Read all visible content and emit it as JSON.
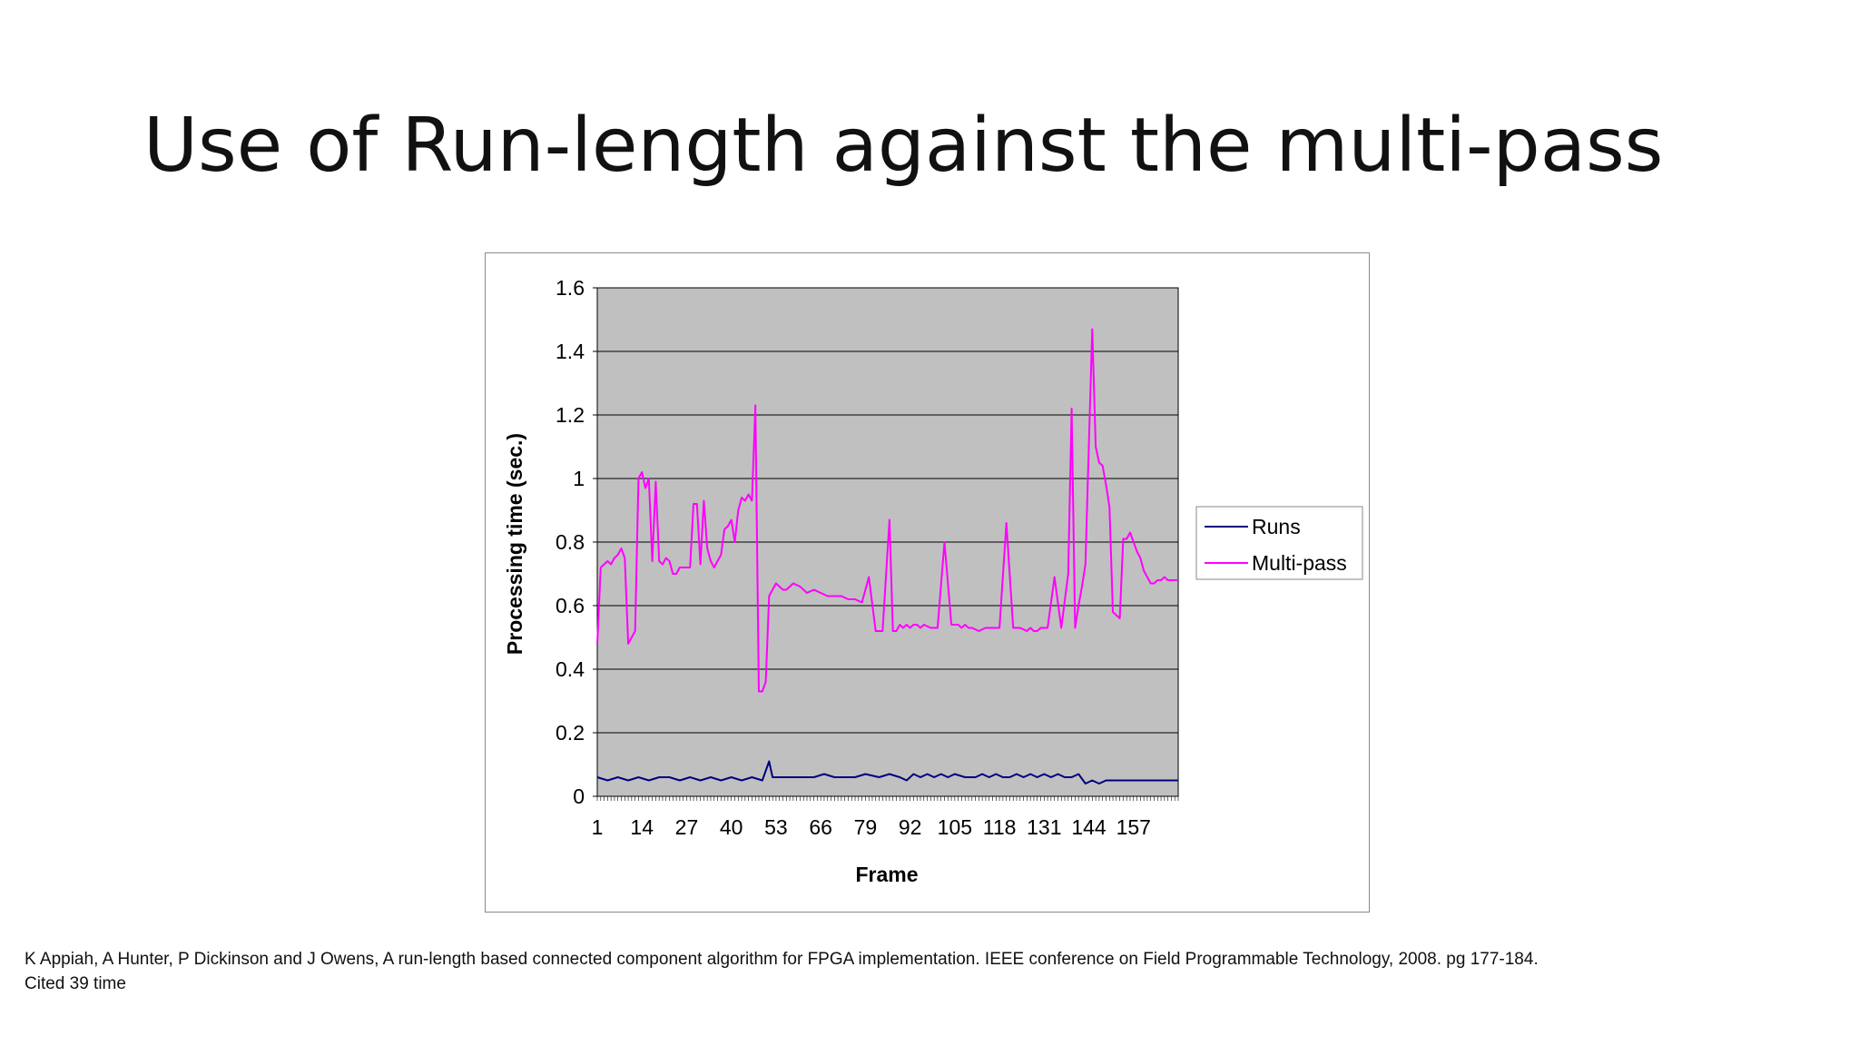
{
  "slide": {
    "title": "Use of Run-length against the multi-pass",
    "citation_line1": "K Appiah, A Hunter, P Dickinson and J Owens, A run-length based connected component algorithm for FPGA implementation. IEEE conference on Field Programmable Technology, 2008. pg 177-184.",
    "citation_line2": "Cited 39 time"
  },
  "chart_data": {
    "type": "line",
    "title": "",
    "xlabel": "Frame",
    "ylabel": "Processing time (sec.)",
    "xlim": [
      1,
      170
    ],
    "ylim": [
      0,
      1.6
    ],
    "yticks": [
      "0",
      "0.2",
      "0.4",
      "0.6",
      "0.8",
      "1",
      "1.2",
      "1.4",
      "1.6"
    ],
    "xtick_labels": [
      "1",
      "14",
      "27",
      "40",
      "53",
      "66",
      "79",
      "92",
      "105",
      "118",
      "131",
      "144",
      "157"
    ],
    "xtick_values": [
      1,
      14,
      27,
      40,
      53,
      66,
      79,
      92,
      105,
      118,
      131,
      144,
      157
    ],
    "grid": true,
    "plot_background": "#c0c0c0",
    "legend_position": "right",
    "series": [
      {
        "name": "Runs",
        "color": "#000080",
        "x": [
          1,
          4,
          7,
          10,
          13,
          16,
          19,
          22,
          25,
          28,
          31,
          34,
          37,
          40,
          43,
          46,
          49,
          51,
          52,
          53,
          56,
          60,
          64,
          67,
          70,
          73,
          76,
          79,
          83,
          86,
          89,
          91,
          93,
          95,
          97,
          99,
          101,
          103,
          105,
          108,
          111,
          113,
          115,
          117,
          119,
          121,
          123,
          125,
          127,
          129,
          131,
          133,
          135,
          137,
          139,
          141,
          143,
          145,
          147,
          149,
          151,
          154,
          157,
          160,
          163,
          166,
          170
        ],
        "y": [
          0.06,
          0.05,
          0.06,
          0.05,
          0.06,
          0.05,
          0.06,
          0.06,
          0.05,
          0.06,
          0.05,
          0.06,
          0.05,
          0.06,
          0.05,
          0.06,
          0.05,
          0.11,
          0.06,
          0.06,
          0.06,
          0.06,
          0.06,
          0.07,
          0.06,
          0.06,
          0.06,
          0.07,
          0.06,
          0.07,
          0.06,
          0.05,
          0.07,
          0.06,
          0.07,
          0.06,
          0.07,
          0.06,
          0.07,
          0.06,
          0.06,
          0.07,
          0.06,
          0.07,
          0.06,
          0.06,
          0.07,
          0.06,
          0.07,
          0.06,
          0.07,
          0.06,
          0.07,
          0.06,
          0.06,
          0.07,
          0.04,
          0.05,
          0.04,
          0.05,
          0.05,
          0.05,
          0.05,
          0.05,
          0.05,
          0.05,
          0.05
        ]
      },
      {
        "name": "Multi-pass",
        "color": "#ff00ff",
        "x": [
          1,
          2,
          3,
          4,
          5,
          6,
          7,
          8,
          9,
          10,
          11,
          12,
          13,
          14,
          15,
          16,
          17,
          18,
          19,
          20,
          21,
          22,
          23,
          24,
          25,
          26,
          27,
          28,
          29,
          30,
          31,
          32,
          33,
          34,
          35,
          36,
          37,
          38,
          39,
          40,
          41,
          42,
          43,
          44,
          45,
          46,
          47,
          48,
          49,
          50,
          51,
          52,
          53,
          54,
          55,
          56,
          58,
          60,
          62,
          64,
          66,
          68,
          70,
          72,
          74,
          76,
          78,
          80,
          82,
          84,
          86,
          87,
          88,
          89,
          90,
          91,
          92,
          93,
          94,
          95,
          96,
          98,
          100,
          102,
          104,
          106,
          107,
          108,
          109,
          110,
          112,
          114,
          116,
          118,
          120,
          122,
          124,
          126,
          127,
          128,
          129,
          130,
          132,
          134,
          136,
          138,
          139,
          140,
          141,
          142,
          143,
          144,
          145,
          146,
          147,
          148,
          149,
          150,
          151,
          152,
          153,
          154,
          155,
          156,
          157,
          158,
          159,
          160,
          161,
          162,
          163,
          164,
          165,
          166,
          167,
          168,
          169,
          170
        ],
        "y": [
          0.48,
          0.72,
          0.73,
          0.74,
          0.73,
          0.75,
          0.76,
          0.78,
          0.75,
          0.48,
          0.5,
          0.52,
          1.0,
          1.02,
          0.97,
          1.0,
          0.74,
          0.99,
          0.74,
          0.73,
          0.75,
          0.74,
          0.7,
          0.7,
          0.72,
          0.72,
          0.72,
          0.72,
          0.92,
          0.92,
          0.73,
          0.93,
          0.78,
          0.74,
          0.72,
          0.74,
          0.76,
          0.84,
          0.85,
          0.87,
          0.8,
          0.9,
          0.94,
          0.93,
          0.95,
          0.93,
          1.23,
          0.33,
          0.33,
          0.36,
          0.63,
          0.65,
          0.67,
          0.66,
          0.65,
          0.65,
          0.67,
          0.66,
          0.64,
          0.65,
          0.64,
          0.63,
          0.63,
          0.63,
          0.62,
          0.62,
          0.61,
          0.69,
          0.52,
          0.52,
          0.87,
          0.52,
          0.52,
          0.54,
          0.53,
          0.54,
          0.53,
          0.54,
          0.54,
          0.53,
          0.54,
          0.53,
          0.53,
          0.8,
          0.54,
          0.54,
          0.53,
          0.54,
          0.53,
          0.53,
          0.52,
          0.53,
          0.53,
          0.53,
          0.86,
          0.53,
          0.53,
          0.52,
          0.53,
          0.52,
          0.52,
          0.53,
          0.53,
          0.69,
          0.53,
          0.7,
          1.22,
          0.53,
          0.6,
          0.66,
          0.73,
          1.1,
          1.47,
          1.1,
          1.05,
          1.04,
          0.98,
          0.91,
          0.58,
          0.57,
          0.56,
          0.81,
          0.81,
          0.83,
          0.8,
          0.77,
          0.75,
          0.71,
          0.69,
          0.67,
          0.67,
          0.68,
          0.68,
          0.69,
          0.68,
          0.68,
          0.68,
          0.68
        ]
      }
    ]
  }
}
